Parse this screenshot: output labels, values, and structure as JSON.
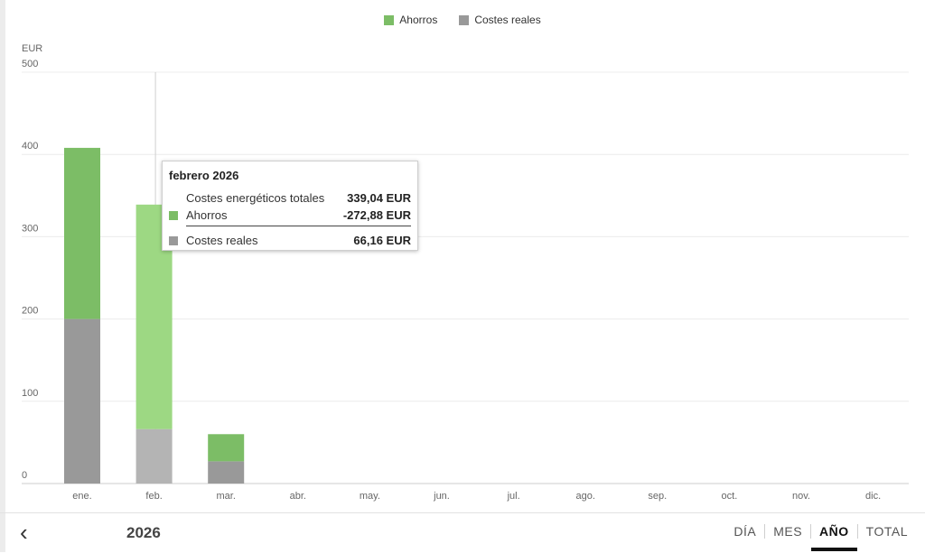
{
  "chart_data": {
    "type": "bar",
    "stacked": true,
    "y_unit": "EUR",
    "ylim": [
      0,
      500
    ],
    "yticks": [
      0,
      100,
      200,
      300,
      400,
      500
    ],
    "categories": [
      "ene.",
      "feb.",
      "mar.",
      "abr.",
      "may.",
      "jun.",
      "jul.",
      "ago.",
      "sep.",
      "oct.",
      "nov.",
      "dic."
    ],
    "series": [
      {
        "name": "Costes reales",
        "color": "#999999",
        "values": [
          200,
          66.16,
          27,
          null,
          null,
          null,
          null,
          null,
          null,
          null,
          null,
          null
        ]
      },
      {
        "name": "Ahorros",
        "color": "#7cbd66",
        "values": [
          208,
          272.88,
          33,
          null,
          null,
          null,
          null,
          null,
          null,
          null,
          null,
          null
        ]
      }
    ],
    "highlight_index": 1,
    "highlight_colors": {
      "Costes reales": "#b4b4b4",
      "Ahorros": "#9dd883"
    },
    "legend_position": "top-center",
    "grid": true
  },
  "legend": [
    {
      "label": "Ahorros",
      "color": "#7cbd66"
    },
    {
      "label": "Costes reales",
      "color": "#999999"
    }
  ],
  "tooltip": {
    "title": "febrero 2026",
    "rows": [
      {
        "label": "Costes energéticos totales",
        "value": "339,04 EUR",
        "color": ""
      },
      {
        "label": "Ahorros",
        "value": "-272,88 EUR",
        "color": "#7cbd66"
      },
      {
        "label": "Costes reales",
        "value": "66,16 EUR",
        "color": "#999999"
      }
    ]
  },
  "footer": {
    "back_icon": "chevron-left-icon",
    "back_glyph": "‹",
    "year": "2026",
    "periods": [
      {
        "label": "DÍA",
        "active": false
      },
      {
        "label": "MES",
        "active": false
      },
      {
        "label": "AÑO",
        "active": true
      },
      {
        "label": "TOTAL",
        "active": false
      }
    ]
  }
}
